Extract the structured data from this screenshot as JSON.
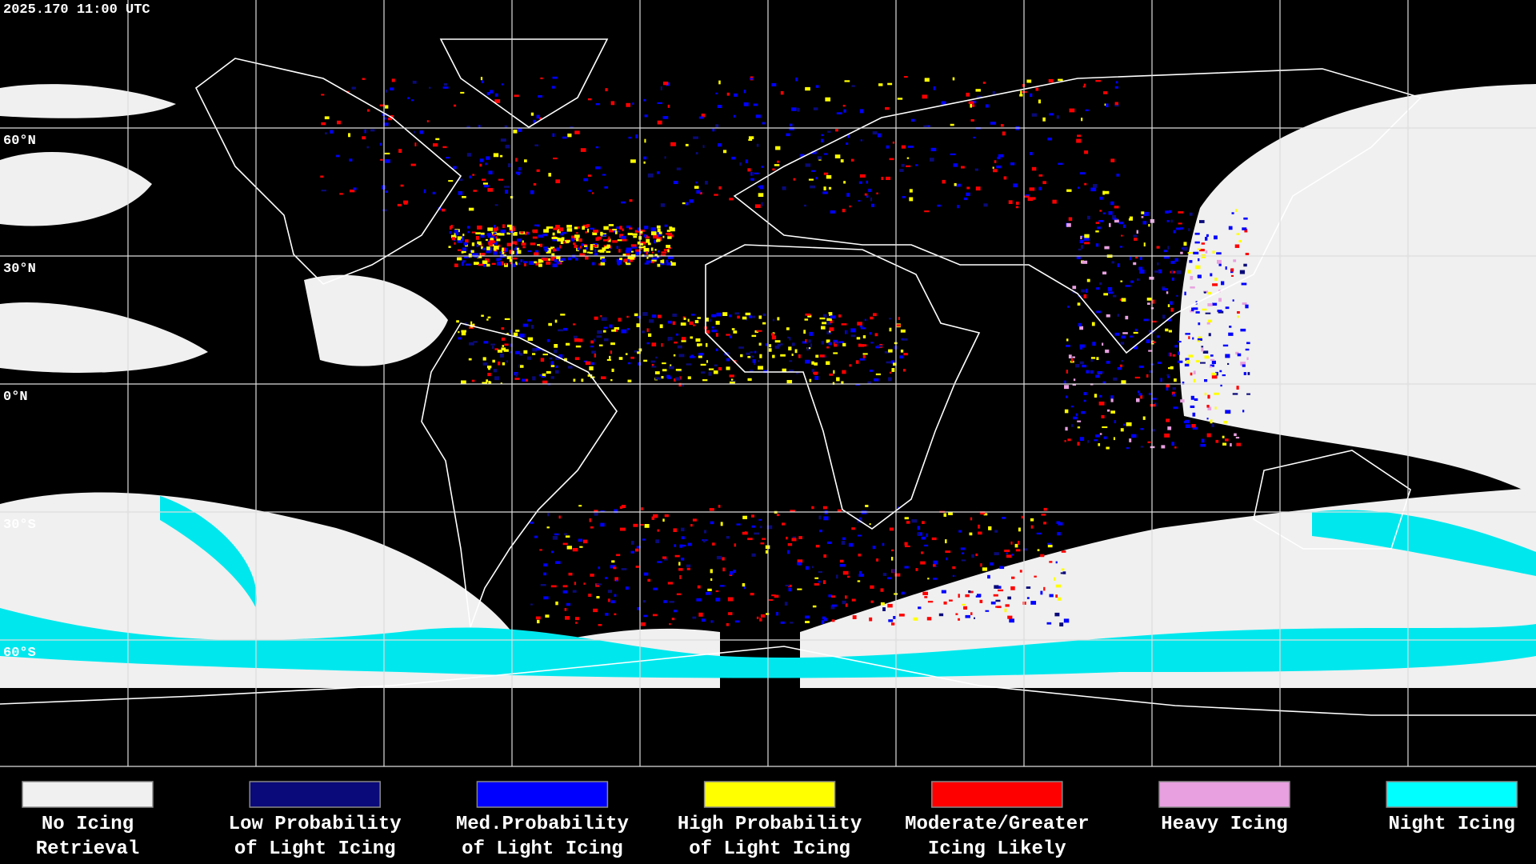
{
  "header": {
    "timestamp": "2025.170 11:00 UTC"
  },
  "map": {
    "latitude_labels": [
      "60°N",
      "30°N",
      "0°N",
      "30°S",
      "60°S"
    ]
  },
  "legend": {
    "items": [
      {
        "lines": [
          "No Icing",
          "Retrieval"
        ],
        "color": "#f0f0f0"
      },
      {
        "lines": [
          "Low Probability",
          "of Light Icing"
        ],
        "color": "#0a0a7a"
      },
      {
        "lines": [
          "Med.Probability",
          "of Light Icing"
        ],
        "color": "#0000ff"
      },
      {
        "lines": [
          "High Probability",
          "of Light Icing"
        ],
        "color": "#ffff00"
      },
      {
        "lines": [
          "Moderate/Greater",
          "Icing Likely"
        ],
        "color": "#ff0000"
      },
      {
        "lines": [
          "Heavy Icing"
        ],
        "color": "#e8a0e0"
      },
      {
        "lines": [
          "Night Icing"
        ],
        "color": "#00ffff"
      }
    ]
  }
}
